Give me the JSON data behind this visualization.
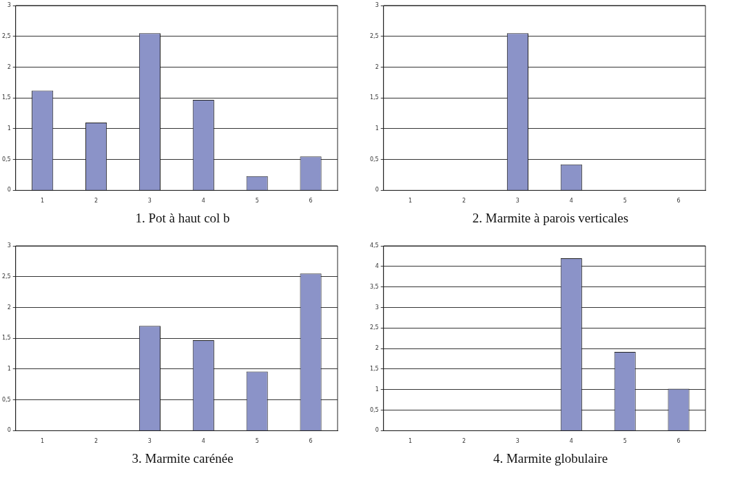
{
  "chart_data": [
    {
      "type": "bar",
      "title": "1. Pot à haut col b",
      "categories": [
        "1",
        "2",
        "3",
        "4",
        "5",
        "6"
      ],
      "values": [
        1.62,
        1.1,
        2.55,
        1.47,
        0.23,
        0.55
      ],
      "color": "#8b93c8",
      "ylim": [
        0,
        3
      ],
      "yticks": [
        0,
        {
          "value": 0.5,
          "label": "0,5"
        },
        1,
        {
          "value": 1.5,
          "label": "1,5"
        },
        2,
        {
          "value": 2.5,
          "label": "2,5"
        },
        3
      ],
      "grid": "y"
    },
    {
      "type": "bar",
      "title": "2. Marmite à parois verticales",
      "categories": [
        "1",
        "2",
        "3",
        "4",
        "5",
        "6"
      ],
      "values": [
        0,
        0,
        2.55,
        0.42,
        0,
        0
      ],
      "color": "#8b93c8",
      "ylim": [
        0,
        3
      ],
      "yticks": [
        0,
        {
          "value": 0.5,
          "label": "0,5"
        },
        1,
        {
          "value": 1.5,
          "label": "1,5"
        },
        2,
        {
          "value": 2.5,
          "label": "2,5"
        },
        3
      ],
      "grid": "y"
    },
    {
      "type": "bar",
      "title": "3. Marmite carénée",
      "categories": [
        "1",
        "2",
        "3",
        "4",
        "5",
        "6"
      ],
      "values": [
        0,
        0,
        1.7,
        1.47,
        0.96,
        2.55
      ],
      "color": "#8b93c8",
      "ylim": [
        0,
        3
      ],
      "yticks": [
        0,
        {
          "value": 0.5,
          "label": "0,5"
        },
        1,
        {
          "value": 1.5,
          "label": "1,5"
        },
        2,
        {
          "value": 2.5,
          "label": "2,5"
        },
        3
      ],
      "grid": "y"
    },
    {
      "type": "bar",
      "title": "4. Marmite globulaire",
      "categories": [
        "1",
        "2",
        "3",
        "4",
        "5",
        "6"
      ],
      "values": [
        0,
        0,
        0,
        4.2,
        1.92,
        1.02
      ],
      "color": "#8b93c8",
      "ylim": [
        0,
        4.5
      ],
      "yticks": [
        0,
        {
          "value": 0.5,
          "label": "0,5"
        },
        1,
        {
          "value": 1.5,
          "label": "1,5"
        },
        2,
        {
          "value": 2.5,
          "label": "2,5"
        },
        3,
        {
          "value": 3.5,
          "label": "3,5"
        },
        4,
        {
          "value": 4.5,
          "label": "4,5"
        }
      ],
      "grid": "y"
    }
  ]
}
